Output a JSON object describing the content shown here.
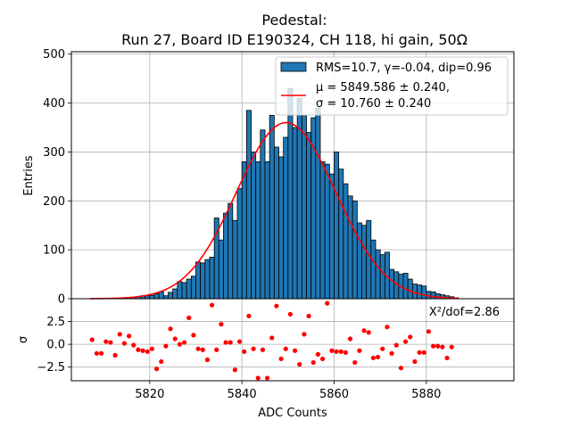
{
  "chart_data": [
    {
      "type": "bar",
      "panel": "histogram",
      "title_line1": "Pedestal:",
      "title_line2": "Run 27, Board ID E190324, CH 118, hi gain, 50Ω",
      "xlabel": "",
      "ylabel": "Entries",
      "xlim": [
        5803,
        5899
      ],
      "ylim": [
        0,
        505
      ],
      "yticks": [
        0,
        100,
        200,
        300,
        400,
        500
      ],
      "ytick_labels": [
        "0",
        "100",
        "200",
        "300",
        "400",
        "500"
      ],
      "xticks": [
        5820,
        5840,
        5860,
        5880
      ],
      "grid": true,
      "bin_width": 1,
      "bins_start": 5807,
      "values": [
        0,
        0,
        0,
        0,
        1,
        1,
        1,
        2,
        2,
        3,
        4,
        6,
        6,
        7,
        10,
        14,
        6,
        13,
        20,
        35,
        33,
        40,
        46,
        75,
        73,
        80,
        85,
        165,
        120,
        175,
        195,
        160,
        225,
        280,
        385,
        300,
        280,
        345,
        280,
        375,
        310,
        290,
        330,
        430,
        350,
        410,
        375,
        340,
        370,
        390,
        280,
        275,
        255,
        300,
        265,
        235,
        210,
        200,
        155,
        150,
        160,
        120,
        100,
        90,
        95,
        60,
        55,
        50,
        52,
        40,
        30,
        28,
        26,
        15,
        14,
        10,
        8,
        6,
        4,
        2
      ],
      "bar_color": "#1f77b4",
      "fit": {
        "type": "gaussian",
        "mu": 5849.586,
        "sigma": 10.76,
        "amplitude": 360,
        "color": "#ff0000"
      },
      "legend": {
        "placement": "top-right",
        "entries": [
          {
            "label": "RMS=10.7, γ=-0.04, dip=0.96",
            "kind": "patch",
            "color": "#1f77b4"
          },
          {
            "label_line1": "μ = 5849.586 ± 0.240,",
            "label_line2": "σ = 10.760 ± 0.240",
            "kind": "line",
            "color": "#ff0000"
          }
        ]
      }
    },
    {
      "type": "scatter",
      "panel": "residuals",
      "xlabel": "ADC Counts",
      "ylabel": "σ",
      "xlim": [
        5803,
        5899
      ],
      "ylim": [
        -4.0,
        5.0
      ],
      "yticks": [
        -2.5,
        0.0,
        2.5
      ],
      "ytick_labels": [
        "−2.5",
        "0.0",
        "2.5"
      ],
      "xticks": [
        5820,
        5840,
        5860,
        5880
      ],
      "xtick_labels": [
        "5820",
        "5840",
        "5860",
        "5880"
      ],
      "grid": true,
      "annotation": "X²/dof=2.86",
      "point_color": "#ff0000",
      "x": [
        5807.5,
        5808.5,
        5809.5,
        5810.5,
        5811.5,
        5812.5,
        5813.5,
        5814.5,
        5815.5,
        5816.5,
        5817.5,
        5818.5,
        5819.5,
        5820.5,
        5821.5,
        5822.5,
        5823.5,
        5824.5,
        5825.5,
        5826.5,
        5827.5,
        5828.5,
        5829.5,
        5830.5,
        5831.5,
        5832.5,
        5833.5,
        5834.5,
        5835.5,
        5836.5,
        5837.5,
        5838.5,
        5839.5,
        5840.5,
        5841.5,
        5842.5,
        5843.5,
        5844.5,
        5845.5,
        5846.5,
        5847.5,
        5848.5,
        5849.5,
        5850.5,
        5851.5,
        5852.5,
        5853.5,
        5854.5,
        5855.5,
        5856.5,
        5857.5,
        5858.5,
        5859.5,
        5860.5,
        5861.5,
        5862.5,
        5863.5,
        5864.5,
        5865.5,
        5866.5,
        5867.5,
        5868.5,
        5869.5,
        5870.5,
        5871.5,
        5872.5,
        5873.5,
        5874.5,
        5875.5,
        5876.5,
        5877.5,
        5878.5,
        5879.5,
        5880.5,
        5881.5,
        5882.5,
        5883.5,
        5884.5,
        5885.5
      ],
      "y": [
        0.5,
        -1.0,
        -1.0,
        0.3,
        0.2,
        -1.2,
        1.1,
        0.1,
        0.9,
        -0.1,
        -0.6,
        -0.7,
        -0.8,
        -0.5,
        -2.7,
        -1.9,
        -0.2,
        1.7,
        0.6,
        0.0,
        0.2,
        2.9,
        1.0,
        -0.5,
        -0.6,
        -1.7,
        4.3,
        -0.6,
        2.2,
        0.2,
        0.2,
        -2.8,
        0.3,
        -0.8,
        3.1,
        -0.5,
        -3.7,
        -0.6,
        -3.7,
        0.7,
        4.2,
        -1.6,
        -0.5,
        3.3,
        -0.7,
        -2.2,
        1.1,
        3.1,
        -2.0,
        -1.1,
        -1.6,
        4.5,
        -0.7,
        -0.8,
        -0.8,
        -0.9,
        0.6,
        -2.0,
        -0.7,
        1.5,
        1.3,
        -1.5,
        -1.4,
        -0.5,
        1.9,
        -1.0,
        -0.1,
        -2.6,
        0.3,
        0.8,
        -1.9,
        -0.9,
        -0.9,
        1.4,
        -0.2,
        -0.2,
        -0.3,
        -1.5,
        -0.3
      ]
    }
  ]
}
